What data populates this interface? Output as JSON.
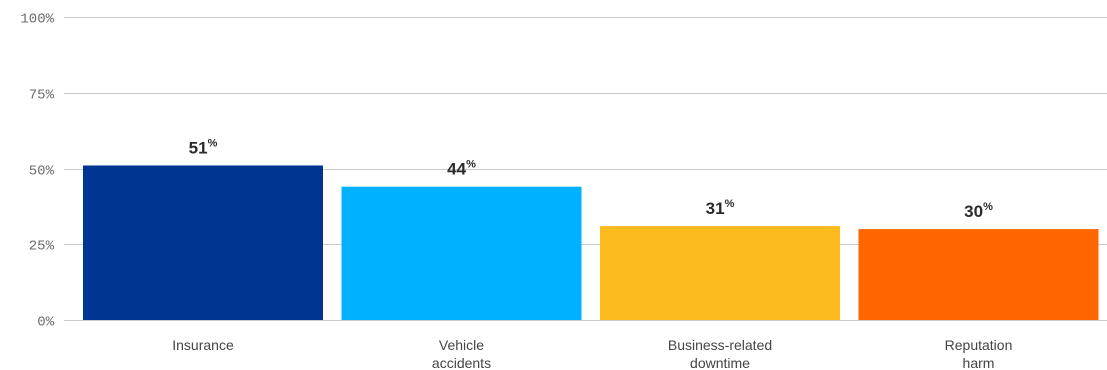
{
  "chart_data": {
    "type": "bar",
    "categories": [
      [
        "Insurance"
      ],
      [
        "Vehicle",
        "accidents"
      ],
      [
        "Business-related",
        "downtime"
      ],
      [
        "Reputation",
        "harm"
      ]
    ],
    "values": [
      51,
      44,
      31,
      30
    ],
    "value_labels": [
      "51",
      "44",
      "31",
      "30"
    ],
    "value_unit": "%",
    "colors": [
      "#003591",
      "#00b1ff",
      "#fdbb1f",
      "#ff6500"
    ],
    "ylim": [
      0,
      100
    ],
    "yticks": [
      0,
      25,
      50,
      75,
      100
    ],
    "ytick_labels": [
      "0%",
      "25%",
      "50%",
      "75%",
      "100%"
    ],
    "grid": true,
    "title": "",
    "xlabel": "",
    "ylabel": ""
  }
}
